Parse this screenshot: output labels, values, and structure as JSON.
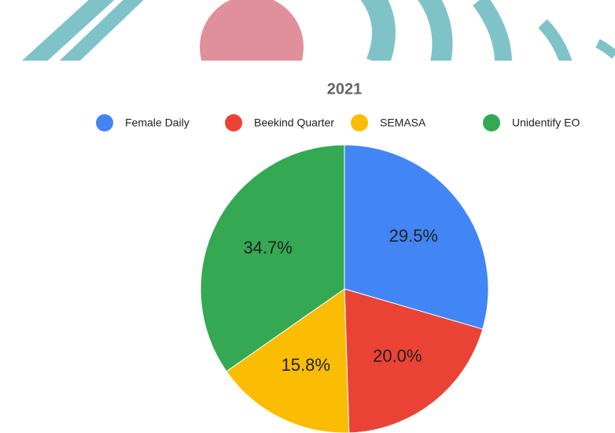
{
  "chart_data": {
    "type": "pie",
    "title": "2021",
    "categories": [
      "Female Daily",
      "Beekind Quarter",
      "SEMASA",
      "Unidentify EO"
    ],
    "values": [
      29.5,
      20.0,
      15.8,
      34.7
    ],
    "value_labels": [
      "29.5%",
      "20.0%",
      "15.8%",
      "34.7%"
    ],
    "colors": [
      "#4285f4",
      "#ea4335",
      "#fbbc04",
      "#34a853"
    ]
  }
}
